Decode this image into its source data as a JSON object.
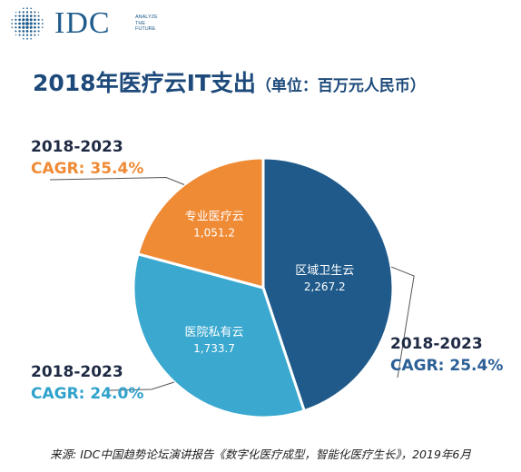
{
  "logo": {
    "brand": "IDC",
    "tagline": [
      "ANALYZE",
      "THE",
      "FUTURE"
    ]
  },
  "title": {
    "main": "2018年医疗云IT支出",
    "sub": "（单位：百万元人民币）"
  },
  "chart_data": {
    "type": "pie",
    "title": "2018年医疗云IT支出（单位：百万元人民币）",
    "slices": [
      {
        "label": "区域卫生云",
        "value": 2267.2,
        "value_label": "2,267.2",
        "color": "#1f5a8a",
        "cagr_period": "2018-2023",
        "cagr": "CAGR: 25.4%",
        "cagr_color": "#2b5f95"
      },
      {
        "label": "医院私有云",
        "value": 1733.7,
        "value_label": "1,733.7",
        "color": "#3aa8cf",
        "cagr_period": "2018-2023",
        "cagr": "CAGR: 24.0%",
        "cagr_color": "#2fa2cb"
      },
      {
        "label": "专业医疗云",
        "value": 1051.2,
        "value_label": "1,051.2",
        "color": "#ef8a35",
        "cagr_period": "2018-2023",
        "cagr": "CAGR: 35.4%",
        "cagr_color": "#ef8a35"
      }
    ]
  },
  "footer": {
    "source": "来源: IDC中国趋势论坛演讲报告《数字化医疗成型，智能化医疗生长》，2019年6月"
  }
}
